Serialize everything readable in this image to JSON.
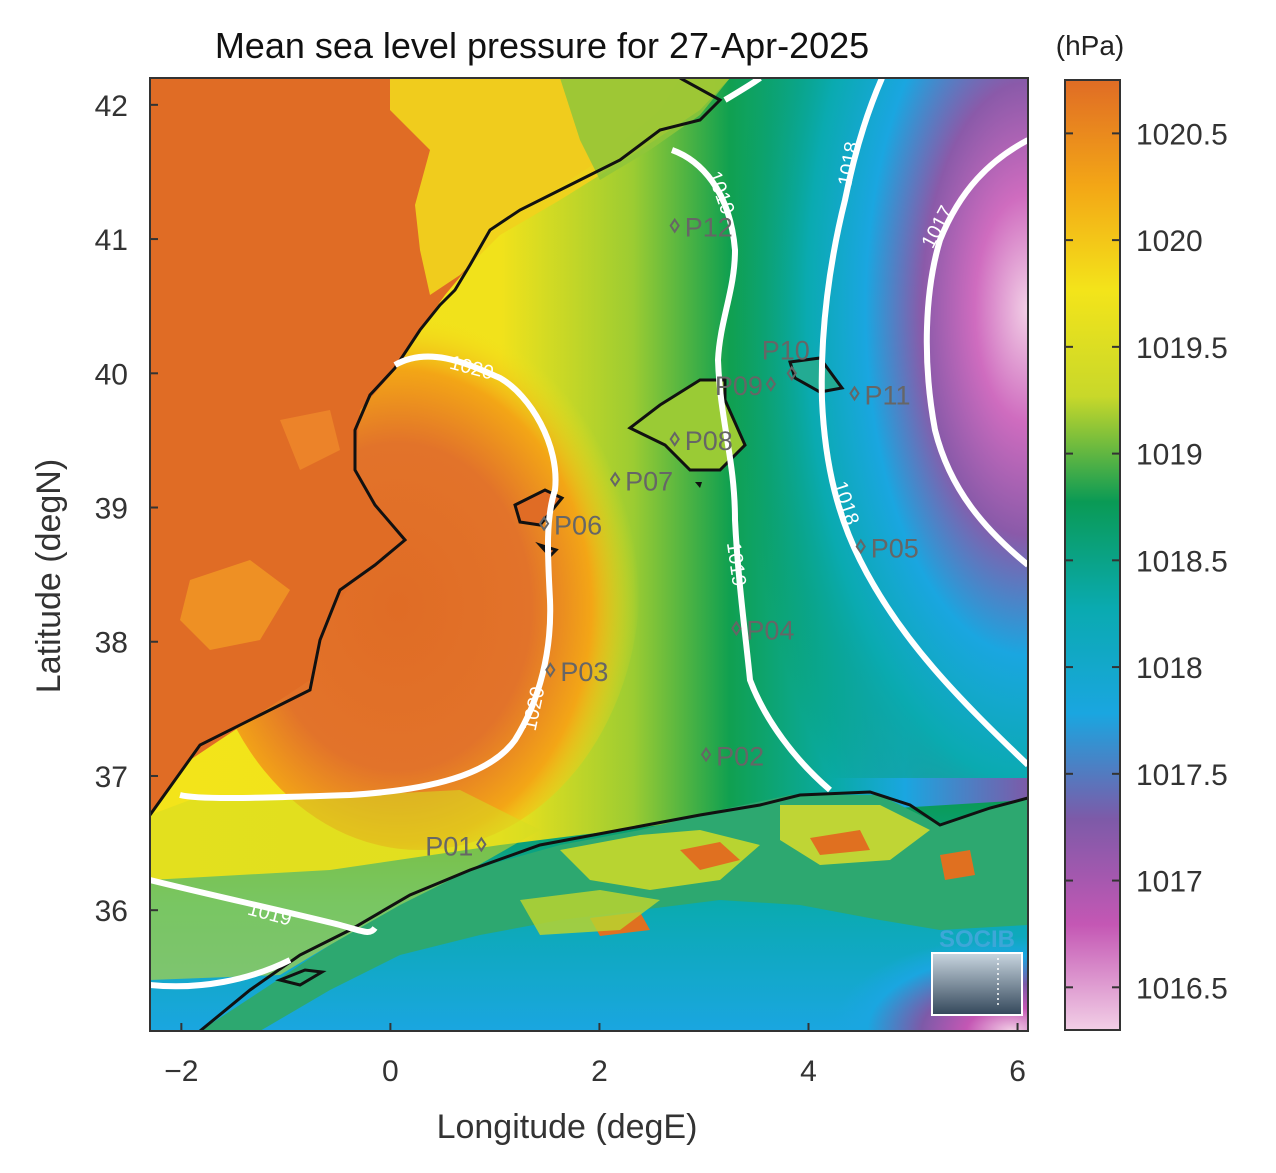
{
  "title": "Mean sea level pressure for 27-Apr-2025",
  "xlabel": "Longitude (degE)",
  "ylabel": "Latitude (degN)",
  "colorbar": {
    "unit": "(hPa)",
    "ticks": [
      1016.5,
      1017,
      1017.5,
      1018,
      1018.5,
      1019,
      1019.5,
      1020,
      1020.5
    ],
    "range": [
      1016.3,
      1020.75
    ],
    "colormap": [
      "#f2cfe6",
      "#c457b4",
      "#7d5aa8",
      "#1aa6e0",
      "#0aaab0",
      "#0a9a55",
      "#c8d82a",
      "#f3e41a",
      "#f3a616",
      "#e06c25"
    ]
  },
  "axes": {
    "xlim": [
      -2.3,
      6.1
    ],
    "ylim": [
      35.1,
      42.2
    ],
    "xticks": [
      -2,
      0,
      2,
      4,
      6
    ],
    "yticks": [
      36,
      37,
      38,
      39,
      40,
      41,
      42
    ]
  },
  "stations": [
    {
      "name": "P01",
      "lon": 0.87,
      "lat": 36.49,
      "side": "left"
    },
    {
      "name": "P02",
      "lon": 3.02,
      "lat": 37.16,
      "side": "right"
    },
    {
      "name": "P03",
      "lon": 1.53,
      "lat": 37.79,
      "side": "right"
    },
    {
      "name": "P04",
      "lon": 3.31,
      "lat": 38.1,
      "side": "right"
    },
    {
      "name": "P05",
      "lon": 4.5,
      "lat": 38.71,
      "side": "right"
    },
    {
      "name": "P06",
      "lon": 1.47,
      "lat": 38.88,
      "side": "right"
    },
    {
      "name": "P07",
      "lon": 2.15,
      "lat": 39.21,
      "side": "right"
    },
    {
      "name": "P08",
      "lon": 2.72,
      "lat": 39.51,
      "side": "right"
    },
    {
      "name": "P09",
      "lon": 3.64,
      "lat": 39.92,
      "side": "left"
    },
    {
      "name": "P10",
      "lon": 3.84,
      "lat": 40.0,
      "side": "upleft"
    },
    {
      "name": "P11",
      "lon": 4.44,
      "lat": 39.85,
      "side": "right"
    },
    {
      "name": "P12",
      "lon": 2.72,
      "lat": 41.1,
      "side": "right"
    }
  ],
  "contours": [
    {
      "level": "1020",
      "label": "1020"
    },
    {
      "level": "1019",
      "label": "1019"
    },
    {
      "level": "1018",
      "label": "1018"
    },
    {
      "level": "1017",
      "label": "1017"
    }
  ],
  "logo": "SOCIB"
}
